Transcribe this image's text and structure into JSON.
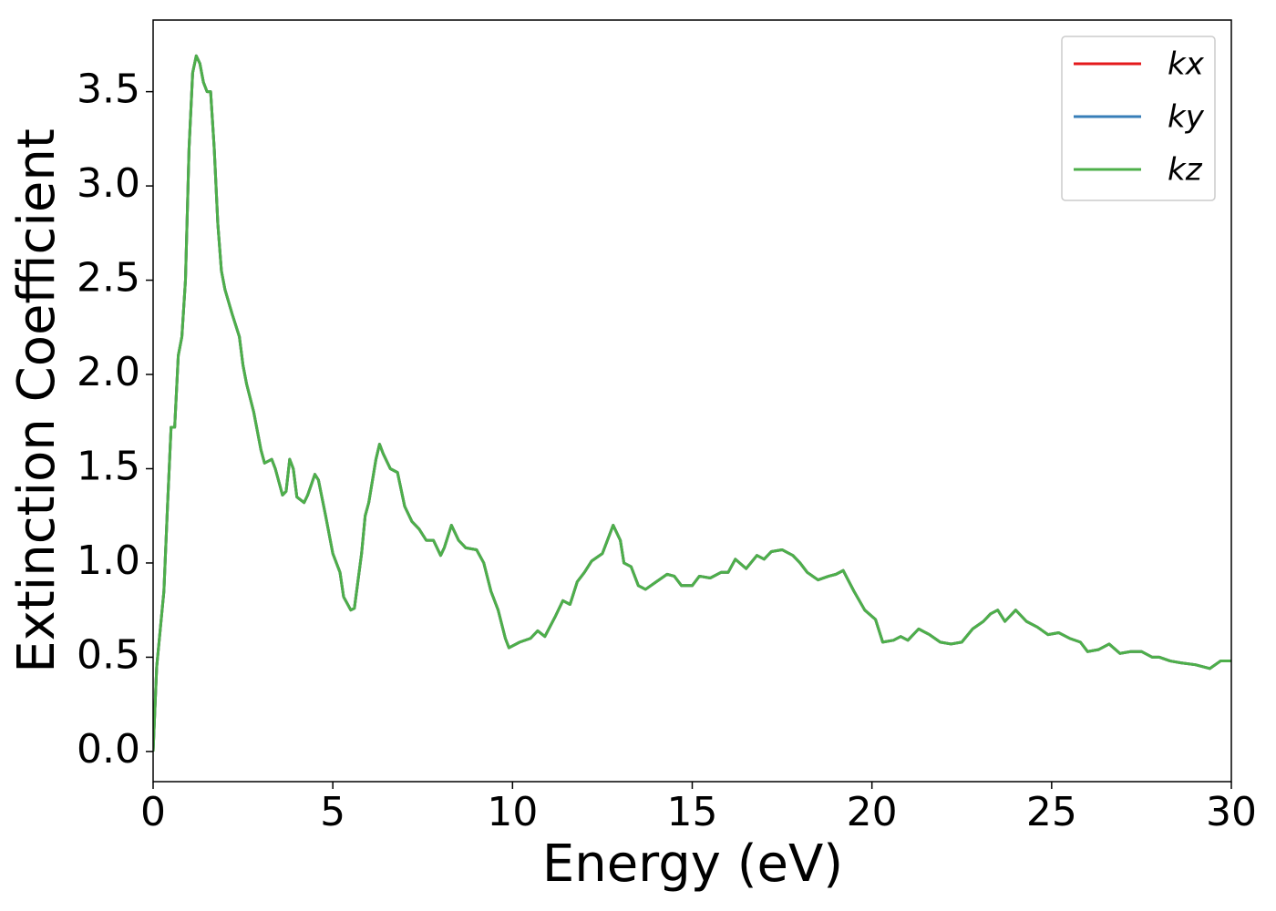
{
  "chart_data": {
    "type": "line",
    "xlabel": "Energy (eV)",
    "ylabel": "Extinction Coefficient",
    "x": [
      0,
      0.1,
      0.2,
      0.3,
      0.4,
      0.5,
      0.6,
      0.7,
      0.8,
      0.9,
      1.0,
      1.1,
      1.2,
      1.3,
      1.4,
      1.5,
      1.6,
      1.7,
      1.8,
      1.9,
      2.0,
      2.2,
      2.4,
      2.5,
      2.6,
      2.8,
      3.0,
      3.1,
      3.3,
      3.4,
      3.6,
      3.7,
      3.8,
      3.9,
      4.0,
      4.2,
      4.3,
      4.5,
      4.6,
      4.8,
      5.0,
      5.2,
      5.3,
      5.5,
      5.6,
      5.8,
      5.9,
      6.0,
      6.2,
      6.3,
      6.4,
      6.6,
      6.8,
      7.0,
      7.2,
      7.4,
      7.6,
      7.8,
      8.0,
      8.1,
      8.3,
      8.5,
      8.7,
      9.0,
      9.2,
      9.4,
      9.6,
      9.8,
      9.9,
      10.2,
      10.5,
      10.7,
      10.9,
      11.2,
      11.4,
      11.6,
      11.8,
      12.0,
      12.2,
      12.5,
      12.8,
      13.0,
      13.1,
      13.3,
      13.5,
      13.7,
      14.0,
      14.3,
      14.5,
      14.7,
      15.0,
      15.2,
      15.5,
      15.8,
      16.0,
      16.2,
      16.5,
      16.8,
      17.0,
      17.2,
      17.5,
      17.8,
      18.0,
      18.2,
      18.5,
      18.8,
      19.0,
      19.2,
      19.5,
      19.8,
      20.1,
      20.3,
      20.6,
      20.8,
      21.0,
      21.3,
      21.6,
      21.9,
      22.2,
      22.5,
      22.8,
      23.1,
      23.3,
      23.5,
      23.7,
      24.0,
      24.3,
      24.6,
      24.9,
      25.2,
      25.5,
      25.8,
      26.0,
      26.3,
      26.6,
      26.9,
      27.2,
      27.5,
      27.8,
      28.0,
      28.3,
      28.6,
      29.0,
      29.4,
      29.7,
      30.0
    ],
    "series": [
      {
        "name": "kx",
        "color": "#e41a1c",
        "values": [
          0.0,
          0.45,
          0.65,
          0.85,
          1.3,
          1.72,
          1.72,
          2.1,
          2.2,
          2.5,
          3.2,
          3.6,
          3.69,
          3.65,
          3.55,
          3.5,
          3.5,
          3.2,
          2.8,
          2.55,
          2.45,
          2.32,
          2.2,
          2.05,
          1.95,
          1.8,
          1.6,
          1.53,
          1.55,
          1.5,
          1.36,
          1.38,
          1.55,
          1.5,
          1.35,
          1.32,
          1.36,
          1.47,
          1.44,
          1.25,
          1.05,
          0.95,
          0.82,
          0.75,
          0.76,
          1.05,
          1.25,
          1.32,
          1.55,
          1.63,
          1.58,
          1.5,
          1.48,
          1.3,
          1.22,
          1.18,
          1.12,
          1.12,
          1.04,
          1.08,
          1.2,
          1.12,
          1.08,
          1.07,
          1.0,
          0.85,
          0.75,
          0.6,
          0.55,
          0.58,
          0.6,
          0.64,
          0.61,
          0.72,
          0.8,
          0.78,
          0.9,
          0.95,
          1.01,
          1.05,
          1.2,
          1.12,
          1.0,
          0.98,
          0.88,
          0.86,
          0.9,
          0.94,
          0.93,
          0.88,
          0.88,
          0.93,
          0.92,
          0.95,
          0.95,
          1.02,
          0.97,
          1.04,
          1.02,
          1.06,
          1.07,
          1.04,
          1.0,
          0.95,
          0.91,
          0.93,
          0.94,
          0.96,
          0.85,
          0.75,
          0.7,
          0.58,
          0.59,
          0.61,
          0.59,
          0.65,
          0.62,
          0.58,
          0.57,
          0.58,
          0.65,
          0.69,
          0.73,
          0.75,
          0.69,
          0.75,
          0.69,
          0.66,
          0.62,
          0.63,
          0.6,
          0.58,
          0.53,
          0.54,
          0.57,
          0.52,
          0.53,
          0.53,
          0.5,
          0.5,
          0.48,
          0.47,
          0.46,
          0.44,
          0.48,
          0.48
        ]
      },
      {
        "name": "ky",
        "color": "#377eb8",
        "values": [
          0.0,
          0.45,
          0.65,
          0.85,
          1.3,
          1.72,
          1.72,
          2.1,
          2.2,
          2.5,
          3.2,
          3.6,
          3.69,
          3.65,
          3.55,
          3.5,
          3.5,
          3.2,
          2.8,
          2.55,
          2.45,
          2.32,
          2.2,
          2.05,
          1.95,
          1.8,
          1.6,
          1.53,
          1.55,
          1.5,
          1.36,
          1.38,
          1.55,
          1.5,
          1.35,
          1.32,
          1.36,
          1.47,
          1.44,
          1.25,
          1.05,
          0.95,
          0.82,
          0.75,
          0.76,
          1.05,
          1.25,
          1.32,
          1.55,
          1.63,
          1.58,
          1.5,
          1.48,
          1.3,
          1.22,
          1.18,
          1.12,
          1.12,
          1.04,
          1.08,
          1.2,
          1.12,
          1.08,
          1.07,
          1.0,
          0.85,
          0.75,
          0.6,
          0.55,
          0.58,
          0.6,
          0.64,
          0.61,
          0.72,
          0.8,
          0.78,
          0.9,
          0.95,
          1.01,
          1.05,
          1.2,
          1.12,
          1.0,
          0.98,
          0.88,
          0.86,
          0.9,
          0.94,
          0.93,
          0.88,
          0.88,
          0.93,
          0.92,
          0.95,
          0.95,
          1.02,
          0.97,
          1.04,
          1.02,
          1.06,
          1.07,
          1.04,
          1.0,
          0.95,
          0.91,
          0.93,
          0.94,
          0.96,
          0.85,
          0.75,
          0.7,
          0.58,
          0.59,
          0.61,
          0.59,
          0.65,
          0.62,
          0.58,
          0.57,
          0.58,
          0.65,
          0.69,
          0.73,
          0.75,
          0.69,
          0.75,
          0.69,
          0.66,
          0.62,
          0.63,
          0.6,
          0.58,
          0.53,
          0.54,
          0.57,
          0.52,
          0.53,
          0.53,
          0.5,
          0.5,
          0.48,
          0.47,
          0.46,
          0.44,
          0.48,
          0.48
        ]
      },
      {
        "name": "kz",
        "color": "#4daf4a",
        "values": [
          0.0,
          0.45,
          0.65,
          0.85,
          1.3,
          1.72,
          1.72,
          2.1,
          2.2,
          2.5,
          3.2,
          3.6,
          3.69,
          3.65,
          3.55,
          3.5,
          3.5,
          3.2,
          2.8,
          2.55,
          2.45,
          2.32,
          2.2,
          2.05,
          1.95,
          1.8,
          1.6,
          1.53,
          1.55,
          1.5,
          1.36,
          1.38,
          1.55,
          1.5,
          1.35,
          1.32,
          1.36,
          1.47,
          1.44,
          1.25,
          1.05,
          0.95,
          0.82,
          0.75,
          0.76,
          1.05,
          1.25,
          1.32,
          1.55,
          1.63,
          1.58,
          1.5,
          1.48,
          1.3,
          1.22,
          1.18,
          1.12,
          1.12,
          1.04,
          1.08,
          1.2,
          1.12,
          1.08,
          1.07,
          1.0,
          0.85,
          0.75,
          0.6,
          0.55,
          0.58,
          0.6,
          0.64,
          0.61,
          0.72,
          0.8,
          0.78,
          0.9,
          0.95,
          1.01,
          1.05,
          1.2,
          1.12,
          1.0,
          0.98,
          0.88,
          0.86,
          0.9,
          0.94,
          0.93,
          0.88,
          0.88,
          0.93,
          0.92,
          0.95,
          0.95,
          1.02,
          0.97,
          1.04,
          1.02,
          1.06,
          1.07,
          1.04,
          1.0,
          0.95,
          0.91,
          0.93,
          0.94,
          0.96,
          0.85,
          0.75,
          0.7,
          0.58,
          0.59,
          0.61,
          0.59,
          0.65,
          0.62,
          0.58,
          0.57,
          0.58,
          0.65,
          0.69,
          0.73,
          0.75,
          0.69,
          0.75,
          0.69,
          0.66,
          0.62,
          0.63,
          0.6,
          0.58,
          0.53,
          0.54,
          0.57,
          0.52,
          0.53,
          0.53,
          0.5,
          0.5,
          0.48,
          0.47,
          0.46,
          0.44,
          0.48,
          0.48
        ]
      }
    ],
    "xlim": [
      0,
      30
    ],
    "ylim": [
      -0.16,
      3.88
    ],
    "xticks": [
      0,
      5,
      10,
      15,
      20,
      25,
      30
    ],
    "yticks": [
      {
        "value": 0,
        "label": "0.0"
      },
      0.5,
      {
        "value": 1,
        "label": "1.0"
      },
      1.5,
      {
        "value": 2,
        "label": "2.0"
      },
      2.5,
      {
        "value": 3,
        "label": "3.0"
      },
      3.5
    ],
    "grid": false,
    "legend": "upper right"
  }
}
